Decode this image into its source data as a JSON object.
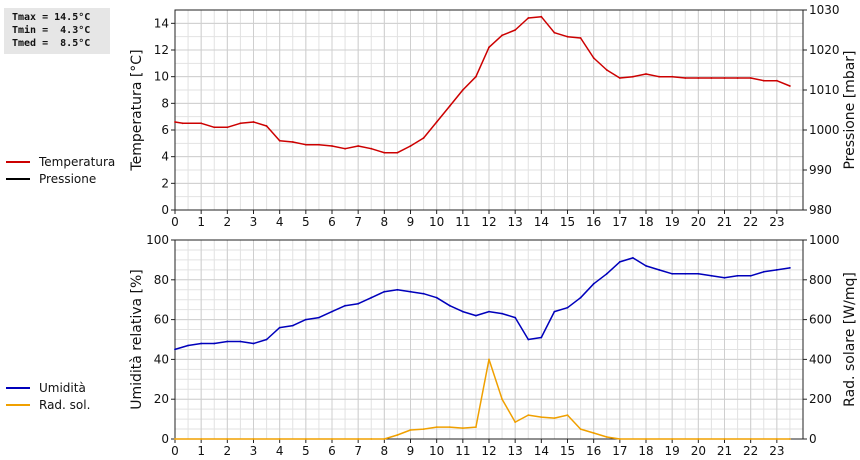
{
  "stats": {
    "tmax": "Tmax = 14.5°C",
    "tmin": "Tmin =  4.3°C",
    "tmed": "Tmed =  8.5°C"
  },
  "chart_data": [
    {
      "type": "line",
      "x_ticks": [
        0,
        1,
        2,
        3,
        4,
        5,
        6,
        7,
        8,
        9,
        10,
        11,
        12,
        13,
        14,
        15,
        16,
        17,
        18,
        19,
        20,
        21,
        22,
        23
      ],
      "xlim": [
        0,
        24
      ],
      "ylabel": "Temperatura [°C]",
      "ylim": [
        0,
        15
      ],
      "y_ticks": [
        0,
        2,
        4,
        6,
        8,
        10,
        12,
        14
      ],
      "y2label": "Pressione [mbar]",
      "y2lim": [
        980,
        1030
      ],
      "y2_ticks": [
        980,
        990,
        1000,
        1010,
        1020,
        1030
      ],
      "grid": true,
      "legend": "left",
      "series": [
        {
          "name": "Temperatura",
          "color": "#cc0000",
          "axis": "left",
          "x": [
            0,
            0.3,
            1,
            1.5,
            2,
            2.5,
            3,
            3.5,
            4,
            4.5,
            5,
            5.5,
            6,
            6.5,
            7,
            7.5,
            8,
            8.5,
            9,
            9.5,
            10,
            10.5,
            11,
            11.5,
            12,
            12.5,
            13,
            13.5,
            14,
            14.5,
            15,
            15.5,
            16,
            16.5,
            17,
            17.5,
            18,
            18.5,
            19,
            19.5,
            20,
            20.5,
            21,
            21.5,
            22,
            22.5,
            23,
            23.5
          ],
          "y": [
            6.6,
            6.5,
            6.5,
            6.2,
            6.2,
            6.5,
            6.6,
            6.3,
            5.2,
            5.1,
            4.9,
            4.9,
            4.8,
            4.6,
            4.8,
            4.6,
            4.3,
            4.3,
            4.8,
            5.4,
            6.6,
            7.8,
            9.0,
            10.0,
            12.2,
            13.1,
            13.5,
            14.4,
            14.5,
            13.3,
            13.0,
            12.9,
            11.4,
            10.5,
            9.9,
            10.0,
            10.2,
            10.0,
            10.0,
            9.9,
            9.9,
            9.9,
            9.9,
            9.9,
            9.9,
            9.7,
            9.7,
            9.3
          ]
        },
        {
          "name": "Pressione",
          "color": "#000000",
          "axis": "right",
          "x": [],
          "y": []
        }
      ]
    },
    {
      "type": "line",
      "x_ticks": [
        0,
        1,
        2,
        3,
        4,
        5,
        6,
        7,
        8,
        9,
        10,
        11,
        12,
        13,
        14,
        15,
        16,
        17,
        18,
        19,
        20,
        21,
        22,
        23
      ],
      "xlim": [
        0,
        24
      ],
      "ylabel": "Umidità relativa [%]",
      "ylim": [
        0,
        100
      ],
      "y_ticks": [
        0,
        20,
        40,
        60,
        80,
        100
      ],
      "y2label": "Rad. solare [W/mq]",
      "y2lim": [
        0,
        1000
      ],
      "y2_ticks": [
        0,
        200,
        400,
        600,
        800,
        1000
      ],
      "grid": true,
      "legend": "left",
      "series": [
        {
          "name": "Umidità",
          "color": "#0000bb",
          "axis": "left",
          "x": [
            0,
            0.5,
            1,
            1.5,
            2,
            2.5,
            3,
            3.5,
            4,
            4.5,
            5,
            5.5,
            6,
            6.5,
            7,
            7.5,
            8,
            8.5,
            9,
            9.5,
            10,
            10.5,
            11,
            11.5,
            12,
            12.5,
            13,
            13.5,
            14,
            14.5,
            15,
            15.5,
            16,
            16.5,
            17,
            17.5,
            18,
            18.5,
            19,
            19.5,
            20,
            20.5,
            21,
            21.5,
            22,
            22.5,
            23,
            23.5
          ],
          "y": [
            45,
            47,
            48,
            48,
            49,
            49,
            48,
            50,
            56,
            57,
            60,
            61,
            64,
            67,
            68,
            71,
            74,
            75,
            74,
            73,
            71,
            67,
            64,
            62,
            64,
            63,
            61,
            50,
            51,
            64,
            66,
            71,
            78,
            83,
            89,
            91,
            87,
            85,
            83,
            83,
            83,
            82,
            81,
            82,
            82,
            84,
            85,
            86
          ]
        },
        {
          "name": "Rad. sol.",
          "color": "#f0a000",
          "axis": "right",
          "x": [
            0,
            1,
            2,
            3,
            4,
            5,
            6,
            7,
            7.5,
            8,
            8.5,
            9,
            9.5,
            10,
            10.5,
            11,
            11.5,
            12,
            12.5,
            13,
            13.5,
            14,
            14.5,
            15,
            15.5,
            16,
            16.5,
            17,
            18,
            19,
            20,
            21,
            22,
            23,
            23.5
          ],
          "y": [
            0,
            0,
            0,
            0,
            0,
            0,
            0,
            0,
            0,
            0,
            20,
            45,
            50,
            60,
            60,
            55,
            60,
            400,
            200,
            85,
            120,
            110,
            105,
            120,
            50,
            30,
            10,
            0,
            0,
            0,
            0,
            0,
            0,
            0,
            0
          ]
        }
      ]
    }
  ]
}
